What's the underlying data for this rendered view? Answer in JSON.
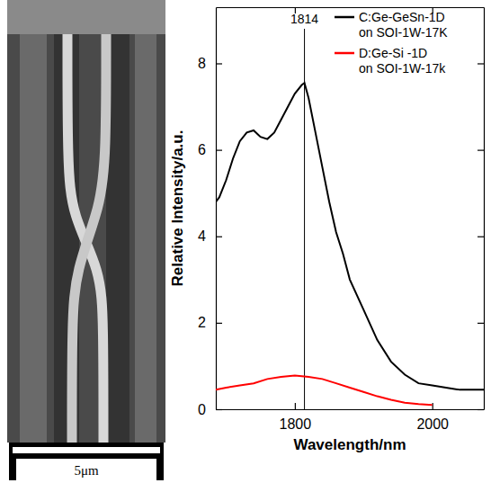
{
  "chart_data": {
    "type": "line",
    "x_label": "Wavelength/nm",
    "y_label": "Relative Intensity/a.u.",
    "xlim": [
      1685,
      2075
    ],
    "xticks": [
      1800,
      2000
    ],
    "ylim": [
      0,
      9.3
    ],
    "yticks": [
      0,
      2,
      4,
      6,
      8
    ],
    "legend": "upper right",
    "annotations": [
      {
        "text": "1814",
        "x": 1814
      }
    ],
    "series": [
      {
        "name": "C:Ge-GeSn-1D on SOI-1W-17K",
        "color": "#000000",
        "x": [
          1685,
          1690,
          1700,
          1710,
          1720,
          1730,
          1740,
          1750,
          1760,
          1770,
          1780,
          1790,
          1800,
          1810,
          1814,
          1820,
          1830,
          1840,
          1850,
          1860,
          1870,
          1880,
          1900,
          1920,
          1940,
          1960,
          1980,
          2000,
          2020,
          2040,
          2060,
          2075
        ],
        "values": [
          4.8,
          4.9,
          5.3,
          5.8,
          6.2,
          6.4,
          6.45,
          6.3,
          6.25,
          6.4,
          6.7,
          7.0,
          7.3,
          7.5,
          7.55,
          7.2,
          6.4,
          5.6,
          4.8,
          4.1,
          3.6,
          3.0,
          2.3,
          1.6,
          1.1,
          0.8,
          0.6,
          0.55,
          0.5,
          0.45,
          0.45,
          0.45
        ]
      },
      {
        "name": "D:Ge-Si -1D on SOI-1W-17k",
        "color": "#ff0000",
        "x": [
          1685,
          1700,
          1720,
          1740,
          1760,
          1780,
          1800,
          1820,
          1840,
          1860,
          1880,
          1900,
          1920,
          1940,
          1960,
          1980,
          2000
        ],
        "values": [
          0.45,
          0.5,
          0.55,
          0.6,
          0.7,
          0.75,
          0.78,
          0.75,
          0.7,
          0.6,
          0.5,
          0.4,
          0.3,
          0.22,
          0.15,
          0.12,
          0.1
        ]
      }
    ]
  },
  "image": {
    "scale_bar": "5μm"
  }
}
